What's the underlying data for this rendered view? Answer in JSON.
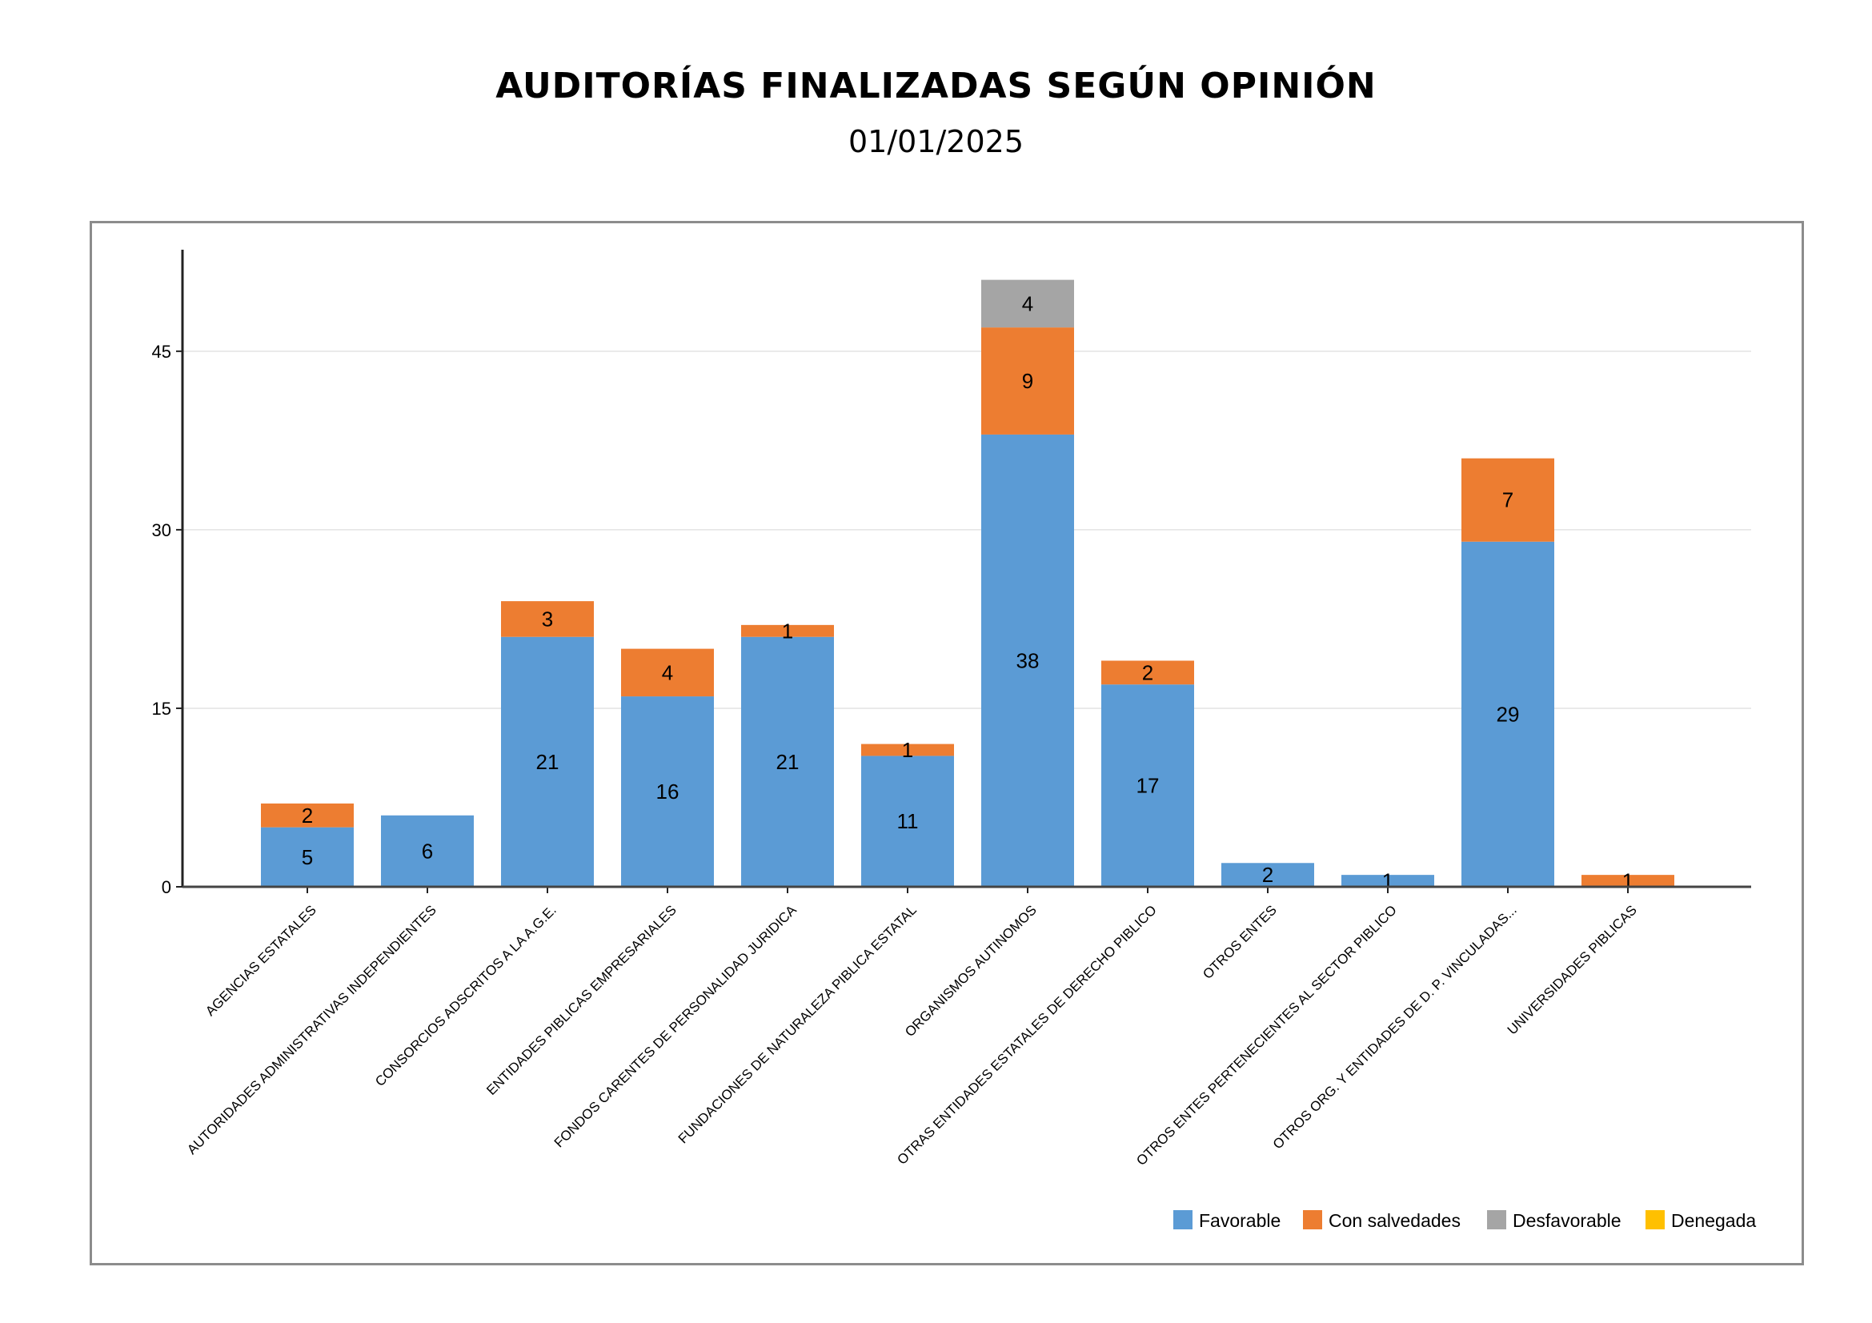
{
  "chart_data": {
    "type": "bar",
    "stacked": true,
    "title": "AUDITORÍAS FINALIZADAS SEGÚN OPINIÓN",
    "subtitle": "01/01/2025",
    "categories": [
      "AGENCIAS ESTATALES",
      "AUTORIDADES ADMINISTRATIVAS INDEPENDIENTES",
      "CONSORCIOS ADSCRITOS A LA A.G.E.",
      "ENTIDADES PIBLICAS EMPRESARIALES",
      "FONDOS CARENTES DE PERSONALIDAD JURIDICA",
      "FUNDACIONES DE NATURALEZA PIBLICA ESTATAL",
      "ORGANISMOS AUTINOMOS",
      "OTRAS ENTIDADES ESTATALES DE DERECHO PIBLICO",
      "OTROS ENTES",
      "OTROS ENTES PERTENECIENTES AL SECTOR PIBLICO",
      "OTROS ORG. Y ENTIDADES DE D. P. VINCULADAS...",
      "UNIVERSIDADES PIBLICAS"
    ],
    "series": [
      {
        "name": "Favorable",
        "color": "#5b9bd5",
        "values": [
          5,
          6,
          21,
          16,
          21,
          11,
          38,
          17,
          2,
          1,
          29,
          0
        ]
      },
      {
        "name": "Con salvedades",
        "color": "#ed7d31",
        "values": [
          2,
          0,
          3,
          4,
          1,
          1,
          9,
          2,
          0,
          0,
          7,
          1
        ]
      },
      {
        "name": "Desfavorable",
        "color": "#a5a5a5",
        "values": [
          0,
          0,
          0,
          0,
          0,
          0,
          4,
          0,
          0,
          0,
          0,
          0
        ]
      },
      {
        "name": "Denegada",
        "color": "#ffc000",
        "values": [
          0,
          0,
          0,
          0,
          0,
          0,
          0,
          0,
          0,
          0,
          0,
          0
        ]
      }
    ],
    "y_ticks": [
      0,
      15,
      30,
      45
    ],
    "ylim": [
      0,
      54
    ],
    "grid": true,
    "legend_position": "bottom-right"
  }
}
